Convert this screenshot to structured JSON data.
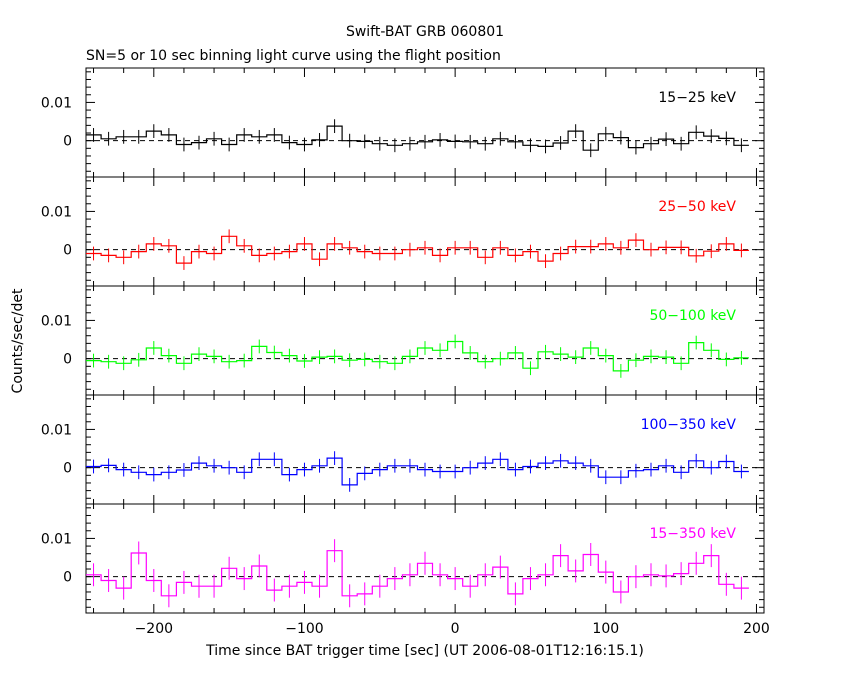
{
  "chart_data": {
    "type": "line",
    "title": "Swift-BAT GRB 060801",
    "subtitle": "SN=5 or 10 sec binning light curve using the flight position",
    "xlabel": "Time since BAT trigger time [sec] (UT 2006-08-01T12:16:15.1)",
    "ylabel": "Counts/sec/det",
    "xlim": [
      -245,
      205
    ],
    "ylim": [
      -0.0095,
      0.019
    ],
    "bin_width": 10,
    "x": [
      -240,
      -230,
      -220,
      -210,
      -200,
      -190,
      -180,
      -170,
      -160,
      -150,
      -140,
      -130,
      -120,
      -110,
      -100,
      -90,
      -80,
      -70,
      -60,
      -50,
      -40,
      -30,
      -20,
      -10,
      0,
      10,
      20,
      30,
      40,
      50,
      60,
      70,
      80,
      90,
      100,
      110,
      120,
      130,
      140,
      150,
      160,
      170,
      180,
      190
    ],
    "x_tick_labels": [
      "−200",
      "−100",
      "0",
      "100",
      "200"
    ],
    "x_ticks": [
      -200,
      -100,
      0,
      100,
      200
    ],
    "y_tick_labels": [
      "0.01",
      "0"
    ],
    "y_ticks": [
      0.01,
      0
    ],
    "series": [
      {
        "name": "15−25 keV",
        "color": "#000000",
        "values": [
          0.0015,
          0.0005,
          0.001,
          0.001,
          0.0025,
          0.0015,
          -0.001,
          -0.0005,
          0.0005,
          -0.001,
          0.0015,
          0.001,
          0.0015,
          -0.0005,
          -0.001,
          0.0002,
          0.0038,
          0.0,
          -0.0002,
          -0.0008,
          -0.0012,
          -0.0008,
          -0.0003,
          0.0002,
          -0.0002,
          -0.0003,
          -0.0008,
          0.0005,
          -0.0003,
          -0.0012,
          -0.0015,
          -0.0006,
          0.0025,
          -0.0025,
          0.0018,
          0.0008,
          -0.0018,
          -0.0008,
          0.0004,
          -0.0008,
          0.0022,
          0.0012,
          0.0006,
          -0.0012
        ]
      },
      {
        "name": "25−50 keV",
        "color": "#ff0000",
        "values": [
          -0.001,
          -0.0015,
          -0.002,
          -0.0005,
          0.0015,
          0.001,
          -0.0035,
          -0.0005,
          -0.001,
          0.0035,
          0.001,
          -0.0015,
          -0.001,
          -0.0005,
          0.0015,
          -0.0025,
          0.0015,
          0.0005,
          -0.0005,
          -0.001,
          -0.001,
          0.0,
          0.0005,
          -0.0015,
          0.0005,
          0.0005,
          -0.002,
          0.0005,
          -0.0015,
          -0.0005,
          -0.003,
          -0.001,
          0.0008,
          0.0008,
          0.0015,
          0.0005,
          0.0025,
          0.0,
          0.0006,
          0.0006,
          -0.0016,
          -0.0004,
          0.0015,
          -0.0002
        ]
      },
      {
        "name": "50−100 keV",
        "color": "#00ff00",
        "values": [
          -0.0005,
          -0.0008,
          -0.0012,
          -0.0003,
          0.0028,
          0.0008,
          -0.0012,
          0.0012,
          0.0006,
          -0.0008,
          -0.0005,
          0.0032,
          0.0016,
          0.0008,
          -0.0006,
          0.0004,
          0.0006,
          -0.0004,
          -0.0002,
          -0.0008,
          -0.0012,
          0.0006,
          0.0028,
          0.0022,
          0.0045,
          0.0015,
          -0.0008,
          0.0,
          0.0015,
          -0.0025,
          0.0018,
          0.0012,
          0.0004,
          0.0028,
          0.0008,
          -0.0032,
          -0.0004,
          0.0006,
          0.0004,
          -0.0012,
          0.0042,
          0.0022,
          -0.0002,
          0.0002
        ]
      },
      {
        "name": "100−350 keV",
        "color": "#0000ff",
        "values": [
          0.0003,
          0.0006,
          -0.0005,
          -0.0012,
          -0.0018,
          -0.0012,
          -0.0006,
          0.0012,
          0.0005,
          0.0,
          -0.0012,
          0.0022,
          0.0022,
          -0.0018,
          -0.0005,
          0.0005,
          0.0025,
          -0.0045,
          -0.0015,
          -0.0005,
          0.0005,
          0.0005,
          -0.0005,
          -0.001,
          -0.001,
          0.0,
          0.0012,
          0.0022,
          -0.0005,
          0.0003,
          0.0012,
          0.0018,
          0.0012,
          0.0005,
          -0.0025,
          -0.0025,
          -0.0008,
          -0.0005,
          0.0005,
          -0.0012,
          0.0018,
          0.0,
          0.0016,
          -0.001
        ]
      },
      {
        "name": "15−350 keV",
        "color": "#ff00ff",
        "values": [
          0.0005,
          -0.001,
          -0.003,
          0.0062,
          -0.001,
          -0.005,
          -0.0015,
          -0.0025,
          -0.0025,
          0.0022,
          -0.0005,
          0.0028,
          -0.0035,
          -0.0025,
          -0.0015,
          -0.0025,
          0.0068,
          -0.005,
          -0.0045,
          -0.0025,
          -0.0005,
          0.0005,
          0.0035,
          0.0005,
          -0.0005,
          -0.0025,
          0.0005,
          0.0025,
          -0.0045,
          -0.0005,
          0.0005,
          0.0055,
          0.0015,
          0.0058,
          0.0012,
          -0.004,
          0.0,
          0.0005,
          0.0002,
          0.0008,
          0.0035,
          0.0055,
          -0.002,
          -0.003
        ]
      }
    ]
  }
}
